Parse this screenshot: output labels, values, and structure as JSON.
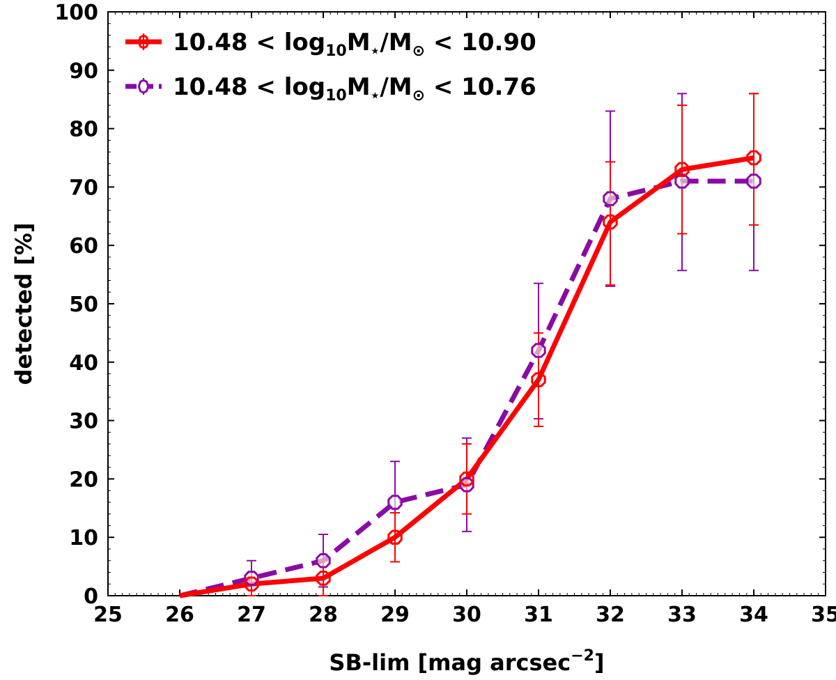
{
  "chart_data": {
    "type": "line",
    "title": "",
    "xlabel": "SB-lim  [mag arcsec",
    "xlabel_exponent": "−2",
    "xlabel_suffix": "]",
    "ylabel": "detected  [%]",
    "xlim": [
      25,
      35
    ],
    "ylim": [
      0,
      100
    ],
    "xticks": [
      25,
      26,
      27,
      28,
      29,
      30,
      31,
      32,
      33,
      34,
      35
    ],
    "yticks": [
      0,
      10,
      20,
      30,
      40,
      50,
      60,
      70,
      80,
      90,
      100
    ],
    "legend_position": "top-left",
    "series": [
      {
        "name": "10.48 < log10 M⋆/M⊙ < 10.90",
        "legend_parts": [
          "10.48 < log",
          "10",
          "M",
          "⋆",
          "/M",
          "⊙",
          " < 10.90"
        ],
        "color": "#ff0000",
        "style": "solid",
        "x": [
          26,
          27,
          28,
          29,
          30,
          31,
          32,
          33,
          34
        ],
        "y": [
          0,
          2,
          3,
          10,
          20,
          37,
          64,
          73,
          75
        ],
        "err_low": [
          0,
          2,
          3,
          4.2,
          6,
          8,
          10.8,
          11,
          11.5
        ],
        "err_high": [
          0,
          2,
          3,
          4.2,
          6,
          8,
          10.3,
          11,
          11
        ]
      },
      {
        "name": "10.48 < log10 M⋆/M⊙ < 10.76",
        "legend_parts": [
          "10.48 < log",
          "10",
          "M",
          "⋆",
          "/M",
          "⊙",
          " < 10.76"
        ],
        "color": "#8b0aa5",
        "style": "dashed",
        "x": [
          26,
          27,
          28,
          29,
          30,
          31,
          32,
          33,
          34
        ],
        "y": [
          0,
          3,
          6,
          16,
          19,
          42,
          68,
          71,
          71
        ],
        "err_low": [
          0,
          3,
          4.5,
          7,
          8,
          11.7,
          15,
          15.3,
          15.3
        ],
        "err_high": [
          0,
          3,
          4.5,
          7,
          8,
          11.5,
          15,
          15,
          15
        ]
      }
    ]
  }
}
